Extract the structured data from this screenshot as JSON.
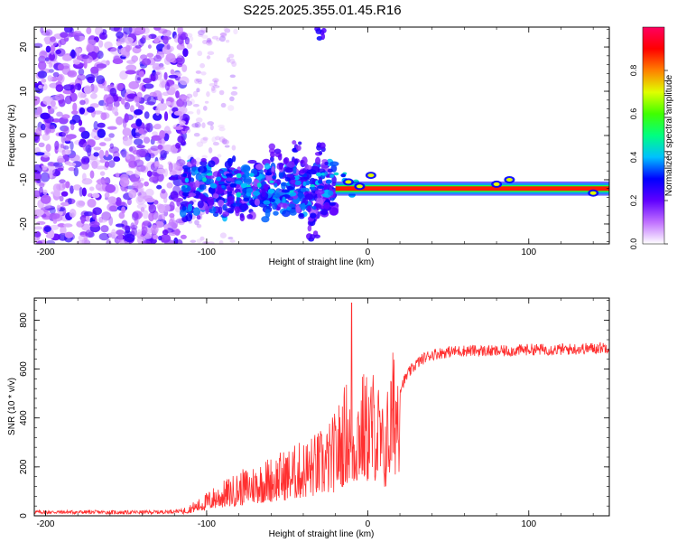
{
  "figure": {
    "title": "S225.2025.355.01.45.R16"
  },
  "colorbar": {
    "label": "Normalized spectral amplitude",
    "ticks": [
      "0.0",
      "0.2",
      "0.4",
      "0.6",
      "0.8"
    ],
    "tick_values": [
      0.0,
      0.2,
      0.4,
      0.6,
      0.8
    ],
    "range": [
      0,
      1
    ],
    "colors": [
      "#ffffff",
      "#c070ff",
      "#6000ff",
      "#0000ff",
      "#00c0ff",
      "#00ff80",
      "#40ff00",
      "#e0ff00",
      "#ff8000",
      "#ff0000",
      "#ff0060"
    ]
  },
  "chart_data": [
    {
      "type": "heatmap",
      "title": "S225.2025.355.01.45.R16",
      "xlabel": "Height of straight line (km)",
      "ylabel": "Frequency (Hz)",
      "xlim": [
        -207,
        150
      ],
      "ylim": [
        -24.5,
        24.5
      ],
      "xticks": [
        -200,
        -100,
        0,
        100
      ],
      "yticks": [
        -20,
        -10,
        0,
        10,
        20
      ],
      "description_note": "spectrogram: scattered noise for x < -115 km; dominant line near -12 Hz for x > -115 km",
      "line_frequency_hz": -12,
      "line_start_km": -115,
      "colorbar_label": "Normalized spectral amplitude"
    },
    {
      "type": "line",
      "xlabel": "Height of straight line (km)",
      "ylabel": "SNR (10 * v/v)",
      "xlim": [
        -207,
        150
      ],
      "ylim": [
        0,
        890
      ],
      "xticks": [
        -200,
        -100,
        0,
        100
      ],
      "yticks": [
        0,
        200,
        400,
        600,
        800
      ],
      "series": [
        {
          "name": "SNR",
          "color": "#ff3030",
          "envelope_x": [
            -207,
            -180,
            -150,
            -130,
            -115,
            -105,
            -95,
            -85,
            -75,
            -65,
            -55,
            -45,
            -35,
            -25,
            -20,
            -15,
            -12,
            -10,
            -8,
            -5,
            0,
            5,
            10,
            15,
            20,
            25,
            30,
            35,
            40,
            50,
            60,
            70,
            80,
            90,
            100,
            110,
            120,
            130,
            140,
            150
          ],
          "envelope_y": [
            15,
            15,
            14,
            15,
            20,
            45,
            80,
            105,
            130,
            150,
            170,
            190,
            215,
            240,
            280,
            340,
            380,
            300,
            340,
            390,
            380,
            400,
            280,
            430,
            520,
            580,
            620,
            645,
            660,
            670,
            675,
            675,
            672,
            675,
            680,
            680,
            680,
            682,
            685,
            690
          ],
          "peak_x": -10,
          "peak_y": 870
        }
      ]
    }
  ]
}
